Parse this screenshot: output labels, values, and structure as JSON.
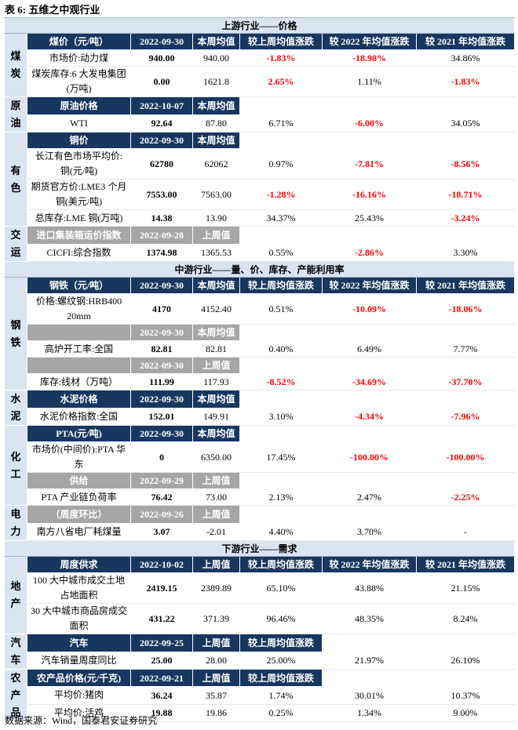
{
  "title": "表 6:  五维之中观行业",
  "source": "数据来源：Wind，国泰君安证券研究",
  "sections": [
    {
      "title": "上游行业——价格",
      "groups": [
        {
          "label": "煤炭",
          "rows": [
            {
              "kind": "navy",
              "cells": [
                "煤价（元/吨）",
                "2022-09-30",
                "本周均值",
                "较上周均值涨跌",
                "较 2022 年均值涨跌",
                "较 2021 年均值涨跌"
              ]
            },
            {
              "kind": "data",
              "cells": [
                "市场价:动力煤",
                "940.00",
                "940.00",
                "-1.83%",
                "-18.98%",
                "34.86%"
              ],
              "red": [
                3,
                4
              ]
            },
            {
              "kind": "data",
              "cells": [
                "煤炭库存:6 大发电集团(万吨)",
                "0.00",
                "1621.8",
                "2.65%",
                "1.11%",
                "-1.83%"
              ],
              "red": [
                3,
                5
              ]
            }
          ]
        },
        {
          "label": "原油",
          "rows": [
            {
              "kind": "navy",
              "cells": [
                "原油价格",
                "2022-10-07",
                "本周均值"
              ]
            },
            {
              "kind": "data",
              "cells": [
                "WTI",
                "92.64",
                "87.80",
                "6.71%",
                "-6.00%",
                "34.05%"
              ],
              "red": [
                4
              ]
            }
          ]
        },
        {
          "label": "有色",
          "rows": [
            {
              "kind": "navy",
              "cells": [
                "铜价",
                "2022-09-30",
                "本周均值"
              ]
            },
            {
              "kind": "data",
              "cells": [
                "长江有色市场平均价:铜(元/吨)",
                "62780",
                "62062",
                "0.97%",
                "-7.81%",
                "-8.56%"
              ],
              "red": [
                4,
                5
              ]
            },
            {
              "kind": "data",
              "cells": [
                "期货官方价:LME3 个月铜(美元/吨)",
                "7553.00",
                "7563.00",
                "-1.28%",
                "-16.16%",
                "-18.71%"
              ],
              "red": [
                3,
                4,
                5
              ]
            },
            {
              "kind": "data",
              "cells": [
                "总库存:LME 铜(万吨)",
                "14.38",
                "13.90",
                "34.37%",
                "25.43%",
                "-3.24%"
              ],
              "red": [
                5
              ]
            }
          ]
        },
        {
          "label": "交运",
          "rows": [
            {
              "kind": "gray",
              "cells": [
                "进口集装箱运价指数",
                "2022-09-28",
                "上周值"
              ]
            },
            {
              "kind": "data",
              "cells": [
                "CICFI:综合指数",
                "1374.98",
                "1365.53",
                "0.55%",
                "-2.86%",
                "3.30%"
              ],
              "red": [
                4
              ]
            }
          ]
        }
      ]
    },
    {
      "title": "中游行业——量、价、库存、产能利用率",
      "groups": [
        {
          "label": "钢铁",
          "rows": [
            {
              "kind": "navy",
              "cells": [
                "钢铁（元/吨）",
                "2022-09-30",
                "本周均值",
                "较上周均值涨跌",
                "较 2022 年均值涨跌",
                "较 2021 年均值涨跌"
              ]
            },
            {
              "kind": "data",
              "cells": [
                "价格:螺纹钢:HRB400 20mm",
                "4170",
                "4152.40",
                "0.51%",
                "-10.09%",
                "-18.06%"
              ],
              "red": [
                4,
                5
              ]
            },
            {
              "kind": "gray",
              "cells": [
                null,
                "2022-09-30",
                "本周均值"
              ]
            },
            {
              "kind": "data",
              "cells": [
                "高炉开工率:全国",
                "82.81",
                "82.81",
                "0.40%",
                "6.49%",
                "7.77%"
              ],
              "red": []
            },
            {
              "kind": "gray",
              "cells": [
                null,
                "2022-09-30",
                "上周值"
              ]
            },
            {
              "kind": "data",
              "cells": [
                "库存:线材（万吨）",
                "111.99",
                "117.93",
                "-8.52%",
                "-34.69%",
                "-37.70%"
              ],
              "red": [
                3,
                4,
                5
              ]
            }
          ]
        },
        {
          "label": "水泥",
          "rows": [
            {
              "kind": "navy",
              "cells": [
                "水泥价格",
                "2022-09-30",
                "本周均值"
              ]
            },
            {
              "kind": "data",
              "cells": [
                "水泥价格指数:全国",
                "152.01",
                "149.91",
                "3.10%",
                "-4.34%",
                "-7.96%"
              ],
              "red": [
                4,
                5
              ]
            }
          ]
        },
        {
          "label": "化工",
          "rows": [
            {
              "kind": "navy",
              "cells": [
                "PTA(元/吨)",
                "2022-09-30",
                "本周均值"
              ]
            },
            {
              "kind": "data",
              "cells": [
                "市场价(中间价):PTA 华东",
                "0",
                "6350.00",
                "17.45%",
                "-100.00%",
                "-100.00%"
              ],
              "red": [
                4,
                5
              ]
            },
            {
              "kind": "gray",
              "cells": [
                "供给",
                "2022-09-29",
                "上周值"
              ]
            },
            {
              "kind": "data",
              "cells": [
                "PTA 产业链负荷率",
                "76.42",
                "73.00",
                "2.13%",
                "2.47%",
                "-2.25%"
              ],
              "red": [
                5
              ]
            }
          ]
        },
        {
          "label": "电力",
          "rows": [
            {
              "kind": "gray",
              "cells": [
                "（周度环比）",
                "2022-09-26",
                "上周值"
              ]
            },
            {
              "kind": "data",
              "cells": [
                "南方八省电厂耗煤量",
                "3.07",
                "-2.01",
                "4.40%",
                "3.70%",
                "-"
              ],
              "red": []
            }
          ]
        }
      ]
    },
    {
      "title": "下游行业——需求",
      "groups": [
        {
          "label": "地产",
          "rows": [
            {
              "kind": "navy",
              "cells": [
                "周度供求",
                "2022-10-02",
                "上周值",
                "较上周均值涨跌",
                "较 2022 年均值涨跌",
                "较 2021 年均值涨跌"
              ]
            },
            {
              "kind": "data",
              "cells": [
                "100 大中城市成交土地占地面积",
                "2419.15",
                "2389.89",
                "65.10%",
                "43.88%",
                "21.15%"
              ],
              "red": []
            },
            {
              "kind": "data",
              "cells": [
                "30 大中城市商品房成交面积",
                "431.22",
                "371.39",
                "96.46%",
                "48.35%",
                "8.24%"
              ],
              "red": []
            }
          ]
        },
        {
          "label": "汽车",
          "rows": [
            {
              "kind": "navy",
              "cells": [
                "汽车",
                "2022-09-25",
                "上周值",
                "较上周均值涨跌"
              ]
            },
            {
              "kind": "data",
              "cells": [
                "汽车销量周度同比",
                "25.00",
                "28.00",
                "25.00%",
                "21.97%",
                "26.10%"
              ],
              "red": []
            }
          ]
        },
        {
          "label": "农产品",
          "rows": [
            {
              "kind": "navy",
              "cells": [
                "农产品价格(元/千克)",
                "2022-09-21",
                "上周值",
                "较上周均值涨跌"
              ]
            },
            {
              "kind": "data",
              "cells": [
                "平均价:猪肉",
                "36.24",
                "35.87",
                "1.74%",
                "30.01%",
                "10.37%"
              ],
              "red": []
            },
            {
              "kind": "data",
              "cells": [
                "平均价:活鸡",
                "19.88",
                "19.86",
                "0.25%",
                "1.34%",
                "9.00%"
              ],
              "red": []
            }
          ]
        }
      ]
    }
  ]
}
